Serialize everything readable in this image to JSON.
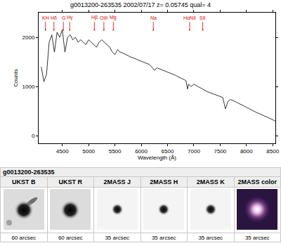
{
  "chart_data": {
    "type": "line",
    "title": "g0013200-263535 2002/07/17 z= 0.05745 qual= 4",
    "x_label": "Wavelength (Å)",
    "y_label": "Counts",
    "color": "#000000",
    "x": [
      4100,
      4150,
      4200,
      4250,
      4300,
      4350,
      4400,
      4450,
      4500,
      4550,
      4600,
      4650,
      4700,
      4750,
      4800,
      4850,
      4900,
      4950,
      5000,
      5050,
      5100,
      5150,
      5200,
      5250,
      5300,
      5350,
      5400,
      5450,
      5500,
      5550,
      5600,
      5650,
      5700,
      5750,
      5800,
      5850,
      5900,
      5950,
      6000,
      6050,
      6100,
      6150,
      6200,
      6250,
      6300,
      6350,
      6400,
      6450,
      6500,
      6550,
      6600,
      6650,
      6700,
      6750,
      6800,
      6850,
      6880,
      6900,
      6950,
      7000,
      7050,
      7100,
      7150,
      7200,
      7250,
      7300,
      7350,
      7400,
      7450,
      7500,
      7550,
      7600,
      7650,
      7700,
      7750,
      7800,
      7850,
      7900,
      7950,
      8000,
      8050,
      8100,
      8150,
      8200,
      8250,
      8300,
      8350,
      8400,
      8450,
      8500,
      8550
    ],
    "values": [
      1400,
      1100,
      1250,
      1900,
      2050,
      1700,
      2100,
      2000,
      2150,
      1700,
      2000,
      2050,
      1950,
      2000,
      1900,
      1950,
      1900,
      1850,
      1950,
      1900,
      1850,
      1800,
      1900,
      1950,
      1900,
      1850,
      1800,
      1700,
      1650,
      1750,
      1700,
      1680,
      1650,
      1620,
      1600,
      1580,
      1560,
      1540,
      1520,
      1500,
      1480,
      1450,
      1400,
      1330,
      1380,
      1360,
      1340,
      1320,
      1300,
      1280,
      1250,
      1230,
      1200,
      1180,
      1150,
      1120,
      950,
      1050,
      1000,
      1050,
      1020,
      980,
      950,
      930,
      900,
      880,
      860,
      840,
      820,
      800,
      780,
      550,
      700,
      740,
      720,
      690,
      660,
      640,
      610,
      580,
      550,
      520,
      500,
      470,
      450,
      420,
      400,
      380,
      350,
      330,
      300
    ],
    "xlim": [
      4050,
      8550
    ],
    "xticks": [
      4500,
      5000,
      5500,
      6000,
      6500,
      7000,
      7500,
      8000,
      8500
    ],
    "ylim": [
      -150,
      2500
    ],
    "yticks": [
      0,
      1000,
      2000
    ],
    "grid": false,
    "annotations": [
      {
        "text": "KH",
        "x": 4180
      },
      {
        "text": "Hδ",
        "x": 4340
      },
      {
        "text": "G",
        "x": 4520
      },
      {
        "text": "Hγ",
        "x": 4640
      },
      {
        "text": "Hβ",
        "x": 5110
      },
      {
        "text": "OIII",
        "x": 5290
      },
      {
        "text": "Mg",
        "x": 5470
      },
      {
        "text": "Na",
        "x": 6230
      },
      {
        "text": "HαNII",
        "x": 6920
      },
      {
        "text": "SII",
        "x": 7170
      }
    ]
  },
  "table": {
    "title": "g0013200-263535",
    "columns": [
      {
        "header": "UKST B",
        "caption": "60 arcsec"
      },
      {
        "header": "UKST R",
        "caption": "60 arcsec"
      },
      {
        "header": "2MASS J",
        "caption": "35 arcsec"
      },
      {
        "header": "2MASS H",
        "caption": "35 arcsec"
      },
      {
        "header": "2MASS K",
        "caption": "35 arcsec"
      },
      {
        "header": "2MASS color",
        "caption": "35 arcsec"
      }
    ]
  }
}
